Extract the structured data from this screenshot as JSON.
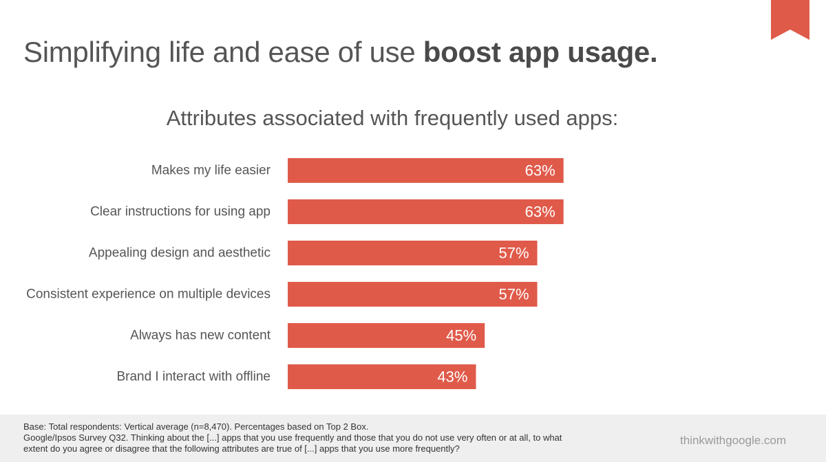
{
  "slide": {
    "title_regular": "Simplifying life and ease of use ",
    "title_bold": "boost app usage.",
    "subtitle": "Attributes associated with frequently used apps:"
  },
  "colors": {
    "bar": "#e05a4a",
    "ribbon": "#e05a4a",
    "footer_background": "#efefef"
  },
  "chart_data": {
    "type": "bar",
    "orientation": "horizontal",
    "categories": [
      "Makes my life easier",
      "Clear instructions for using app",
      "Appealing design and aesthetic",
      "Consistent experience on multiple devices",
      "Always has new content",
      "Brand I interact with offline"
    ],
    "values": [
      63,
      63,
      57,
      57,
      45,
      43
    ],
    "value_labels": [
      "63%",
      "63%",
      "57%",
      "57%",
      "45%",
      "43%"
    ],
    "title": "Attributes associated with frequently used apps:",
    "xlim": [
      0,
      100
    ],
    "grid": false,
    "legend": "none"
  },
  "footer": {
    "note_lines": [
      "Base: Total respondents: Vertical average (n=8,470). Percentages based on Top 2 Box.",
      "Google/Ipsos Survey Q32. Thinking about the [...] apps that you use frequently and those that you do not use very often or at all, to what",
      "extent do you agree or disagree that the following attributes are true of [...] apps that you use more frequently?"
    ],
    "brand": "thinkwithgoogle.com"
  }
}
